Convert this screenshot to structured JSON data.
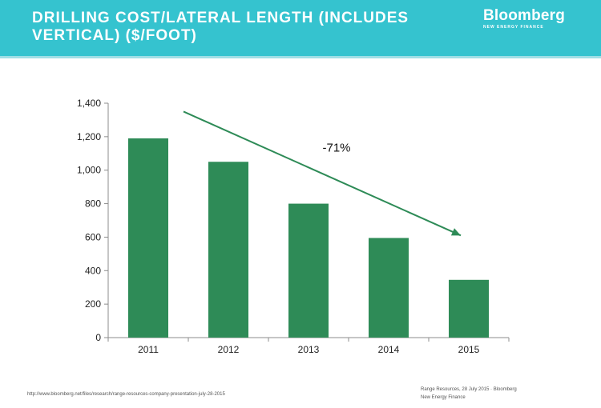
{
  "header": {
    "title_line1": "DRILLING COST/LATERAL LENGTH (INCLUDES",
    "title_line2": "VERTICAL) ($/FOOT)",
    "logo_word": "Bloomberg",
    "logo_sub": "NEW ENERGY FINANCE"
  },
  "colors": {
    "header_bg": "#35c3cf",
    "bar": "#2e8b57",
    "arrow": "#2e8b57"
  },
  "chart_data": {
    "type": "bar",
    "categories": [
      "2011",
      "2012",
      "2013",
      "2014",
      "2015"
    ],
    "values": [
      1190,
      1050,
      800,
      595,
      345
    ],
    "ylim": [
      0,
      1400
    ],
    "yticks": [
      0,
      200,
      400,
      600,
      800,
      1000,
      1200,
      1400
    ],
    "ytick_labels": [
      "0",
      "200",
      "400",
      "600",
      "800",
      "1,000",
      "1,200",
      "1,400"
    ],
    "grid": false,
    "legend": "none",
    "annotation": {
      "text": "-71%",
      "arrow_from": {
        "x": "2011",
        "y": 1350
      },
      "arrow_to": {
        "x": "2015",
        "y": 610
      },
      "label_at": {
        "x": "2013",
        "y": 1110
      }
    }
  },
  "footer": {
    "source_url": "http://www.bloomberg.net/files/research/range-resources-company-presentation-july-28-2015",
    "source_line1": "Range Resources, 28 July 2015 · Bloomberg",
    "source_line2": "New Energy Finance"
  }
}
